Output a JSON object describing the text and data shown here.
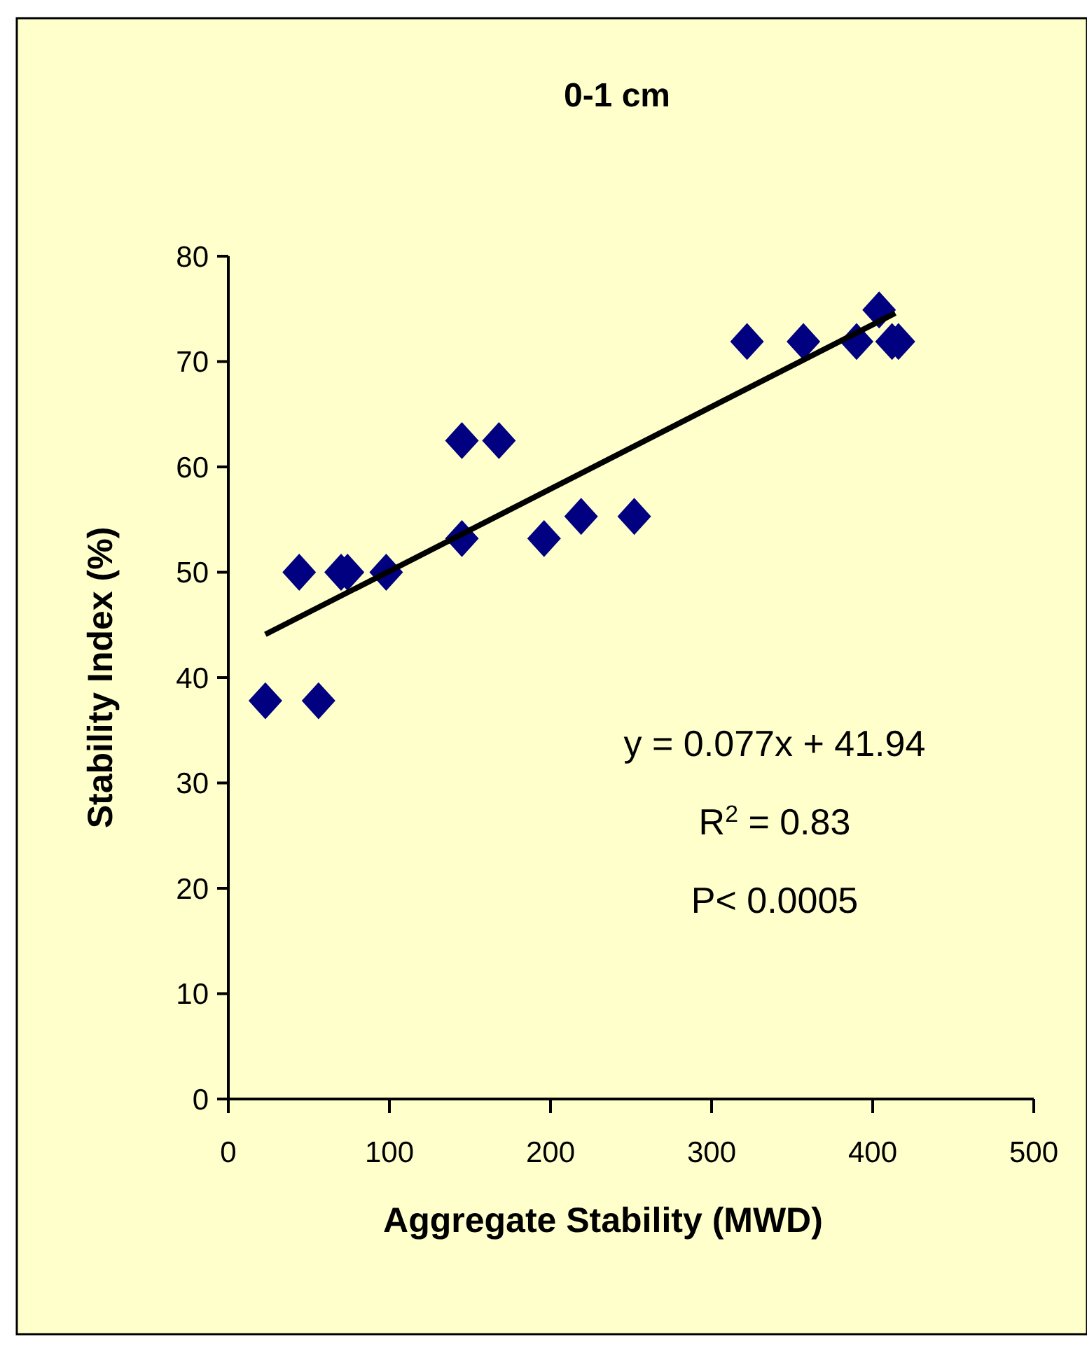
{
  "chart_data": {
    "type": "scatter",
    "title": "0-1 cm",
    "xlabel": "Aggregate Stability (MWD)",
    "ylabel": "Stability Index (%)",
    "xlim": [
      0,
      500
    ],
    "xticks": [
      0,
      100,
      200,
      300,
      400,
      500
    ],
    "ylim": [
      0,
      80
    ],
    "yticks": [
      0,
      10,
      20,
      30,
      40,
      50,
      60,
      70,
      80
    ],
    "grid": false,
    "marker": "diamond",
    "series": [
      {
        "color": "#000080",
        "x": [
          23,
          56,
          44,
          70,
          74,
          98,
          145,
          168,
          145,
          196,
          219,
          252,
          322,
          357,
          390,
          404,
          412,
          416
        ],
        "values": [
          37.8,
          37.8,
          50,
          50,
          50,
          50,
          62.5,
          62.5,
          53.2,
          53.2,
          55.3,
          55.3,
          71.9,
          71.9,
          71.9,
          74.9,
          71.9,
          71.9
        ]
      },
      {
        "type": "line",
        "color": "#000000",
        "marker": "none",
        "line_style": "solid",
        "x": [
          23,
          414
        ],
        "values": [
          44.1,
          74.6
        ]
      }
    ],
    "annotations": [
      "y = 0.077x + 41.94",
      "R$^{2}$ = 0.83",
      "P< 0.0005"
    ]
  }
}
